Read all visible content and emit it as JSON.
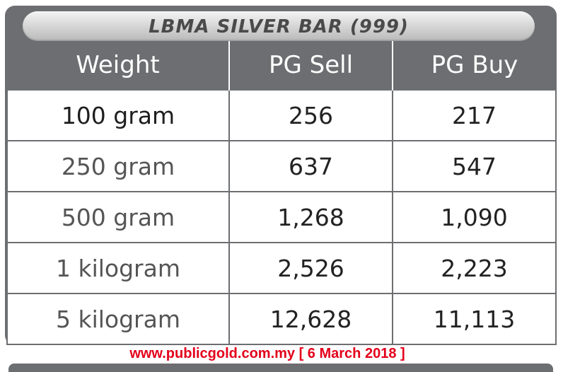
{
  "title": "LBMA SILVER BAR (999)",
  "table": {
    "headers": [
      "Weight",
      "PG Sell",
      "PG Buy"
    ],
    "rows": [
      {
        "weight": "100 gram",
        "sell": "256",
        "buy": "217"
      },
      {
        "weight": "250 gram",
        "sell": "637",
        "buy": "547"
      },
      {
        "weight": "500 gram",
        "sell": "1,268",
        "buy": "1,090"
      },
      {
        "weight": "1 kilogram",
        "sell": "2,526",
        "buy": "2,223"
      },
      {
        "weight": "5 kilogram",
        "sell": "12,628",
        "buy": "11,113"
      }
    ]
  },
  "footer": "www.publicgold.com.my [ 6 March 2018 ]",
  "colors": {
    "frame": "#6d6e71",
    "header_text": "#ffffff",
    "footer_text": "#e3001b"
  }
}
